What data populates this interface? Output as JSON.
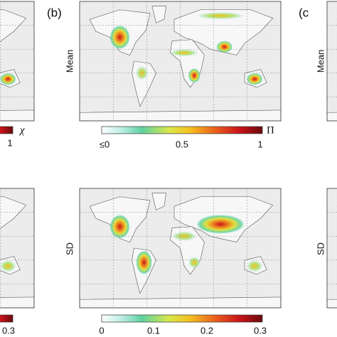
{
  "left": {
    "top_colorbar": {
      "tick": "1",
      "symbol": "χ"
    },
    "bottom_colorbar": {
      "tick": "0.3"
    }
  },
  "middle": {
    "label": "(b)",
    "top_ylabel": "Mean",
    "bottom_ylabel": "SD",
    "top_colorbar": {
      "ticks": [
        "≤0",
        "0.5",
        "1"
      ],
      "symbol": "Π"
    },
    "bottom_colorbar": {
      "ticks": [
        "0",
        "0.1",
        "0.2",
        "0.3"
      ]
    }
  },
  "right": {
    "label": "(c",
    "top_ylabel": "Mean",
    "bottom_ylabel": "SD"
  }
}
